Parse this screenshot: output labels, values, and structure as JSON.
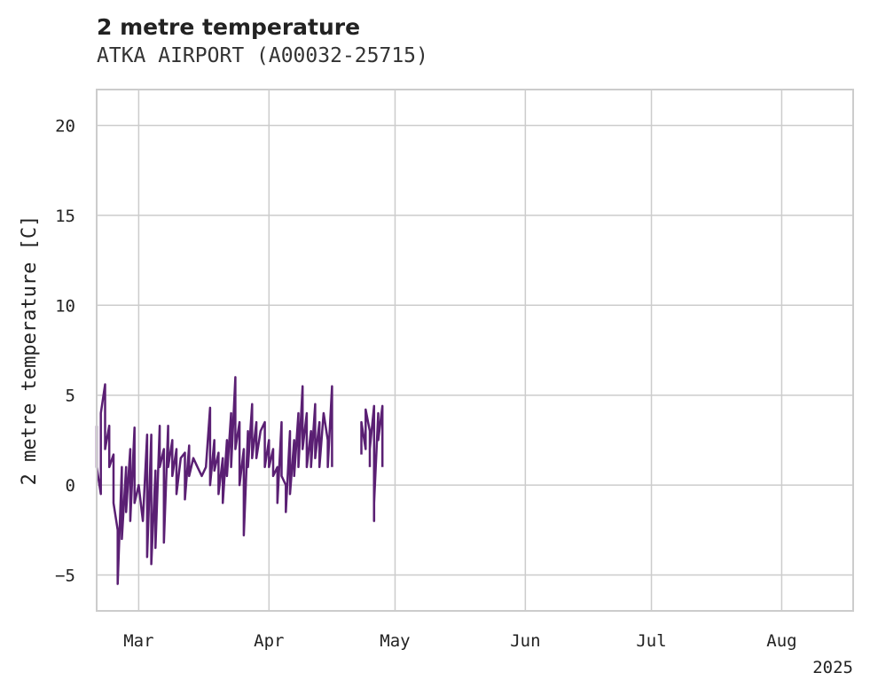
{
  "chart_data": {
    "type": "line",
    "title": "2 metre temperature",
    "subtitle": "ATKA AIRPORT (A00032-25715)",
    "xlabel": "",
    "ylabel": "2 metre temperature [C]",
    "ylim": [
      -7,
      22
    ],
    "xlim": [
      "2025-02-19",
      "2025-08-18"
    ],
    "x_ticks": [
      {
        "date": "2025-03-01",
        "label": "Mar"
      },
      {
        "date": "2025-04-01",
        "label": "Apr"
      },
      {
        "date": "2025-05-01",
        "label": "May"
      },
      {
        "date": "2025-06-01",
        "label": "Jun"
      },
      {
        "date": "2025-07-01",
        "label": "Jul"
      },
      {
        "date": "2025-08-01",
        "label": "Aug"
      }
    ],
    "year_label": "2025",
    "y_ticks": [
      -5,
      0,
      5,
      10,
      15,
      20
    ],
    "y_tick_labels": [
      "−5",
      "0",
      "5",
      "10",
      "15",
      "20"
    ],
    "grid": true,
    "line_color": "#5a1f73",
    "series": [
      {
        "name": "",
        "segments": [
          [
            [
              "2025-02-19",
              3.3
            ],
            [
              "2025-02-19",
              1.0
            ],
            [
              "2025-02-20",
              -0.5
            ],
            [
              "2025-02-20",
              4.0
            ],
            [
              "2025-02-21",
              5.6
            ],
            [
              "2025-02-21",
              2.0
            ],
            [
              "2025-02-22",
              3.3
            ],
            [
              "2025-02-22",
              1.0
            ],
            [
              "2025-02-23",
              1.7
            ],
            [
              "2025-02-23",
              -1.0
            ],
            [
              "2025-02-24",
              -2.5
            ],
            [
              "2025-02-24",
              -5.5
            ],
            [
              "2025-02-25",
              1.0
            ],
            [
              "2025-02-25",
              -3.0
            ],
            [
              "2025-02-26",
              1.0
            ],
            [
              "2025-02-26",
              -1.5
            ],
            [
              "2025-02-27",
              2.0
            ],
            [
              "2025-02-27",
              -2.0
            ],
            [
              "2025-02-28",
              3.2
            ],
            [
              "2025-02-28",
              -1.0
            ],
            [
              "2025-03-01",
              0.0
            ],
            [
              "2025-03-02",
              -2.0
            ],
            [
              "2025-03-03",
              2.8
            ],
            [
              "2025-03-03",
              -4.0
            ],
            [
              "2025-03-04",
              2.8
            ],
            [
              "2025-03-04",
              -4.4
            ],
            [
              "2025-03-05",
              0.8
            ],
            [
              "2025-03-05",
              -3.5
            ],
            [
              "2025-03-06",
              3.3
            ],
            [
              "2025-03-06",
              1.0
            ],
            [
              "2025-03-07",
              2.0
            ],
            [
              "2025-03-07",
              -3.2
            ],
            [
              "2025-03-08",
              3.3
            ],
            [
              "2025-03-08",
              1.0
            ],
            [
              "2025-03-09",
              2.5
            ],
            [
              "2025-03-09",
              0.5
            ],
            [
              "2025-03-10",
              2.0
            ],
            [
              "2025-03-10",
              -0.5
            ],
            [
              "2025-03-11",
              1.5
            ],
            [
              "2025-03-12",
              1.8
            ],
            [
              "2025-03-12",
              -0.8
            ],
            [
              "2025-03-13",
              2.2
            ],
            [
              "2025-03-13",
              0.5
            ],
            [
              "2025-03-14",
              1.5
            ],
            [
              "2025-03-15",
              1.0
            ],
            [
              "2025-03-16",
              0.5
            ],
            [
              "2025-03-17",
              1.0
            ],
            [
              "2025-03-18",
              4.3
            ],
            [
              "2025-03-18",
              0.0
            ],
            [
              "2025-03-19",
              2.5
            ],
            [
              "2025-03-19",
              0.8
            ],
            [
              "2025-03-20",
              1.8
            ],
            [
              "2025-03-20",
              -0.5
            ],
            [
              "2025-03-21",
              1.5
            ],
            [
              "2025-03-21",
              -1.0
            ],
            [
              "2025-03-22",
              2.5
            ],
            [
              "2025-03-22",
              0.5
            ],
            [
              "2025-03-23",
              4.0
            ],
            [
              "2025-03-23",
              1.0
            ],
            [
              "2025-03-24",
              6.0
            ],
            [
              "2025-03-24",
              2.0
            ],
            [
              "2025-03-25",
              3.5
            ],
            [
              "2025-03-25",
              0.0
            ],
            [
              "2025-03-26",
              2.0
            ],
            [
              "2025-03-26",
              -2.8
            ],
            [
              "2025-03-27",
              3.0
            ],
            [
              "2025-03-27",
              1.0
            ],
            [
              "2025-03-28",
              4.5
            ],
            [
              "2025-03-28",
              1.5
            ],
            [
              "2025-03-29",
              3.5
            ],
            [
              "2025-03-29",
              1.5
            ],
            [
              "2025-03-30",
              3.0
            ],
            [
              "2025-03-31",
              3.5
            ],
            [
              "2025-03-31",
              1.0
            ],
            [
              "2025-04-01",
              2.5
            ],
            [
              "2025-04-01",
              1.0
            ],
            [
              "2025-04-02",
              2.0
            ],
            [
              "2025-04-02",
              0.5
            ],
            [
              "2025-04-03",
              1.0
            ],
            [
              "2025-04-03",
              -1.0
            ],
            [
              "2025-04-04",
              3.5
            ],
            [
              "2025-04-04",
              0.5
            ],
            [
              "2025-04-05",
              0.0
            ],
            [
              "2025-04-05",
              -1.5
            ],
            [
              "2025-04-06",
              3.0
            ],
            [
              "2025-04-06",
              -0.5
            ],
            [
              "2025-04-07",
              2.5
            ],
            [
              "2025-04-07",
              0.5
            ],
            [
              "2025-04-08",
              4.0
            ],
            [
              "2025-04-08",
              1.0
            ],
            [
              "2025-04-09",
              5.5
            ],
            [
              "2025-04-09",
              2.0
            ],
            [
              "2025-04-10",
              4.0
            ],
            [
              "2025-04-10",
              1.0
            ],
            [
              "2025-04-11",
              3.0
            ],
            [
              "2025-04-11",
              1.0
            ],
            [
              "2025-04-12",
              4.5
            ],
            [
              "2025-04-12",
              1.5
            ],
            [
              "2025-04-13",
              3.5
            ],
            [
              "2025-04-13",
              1.0
            ],
            [
              "2025-04-14",
              4.0
            ],
            [
              "2025-04-15",
              2.5
            ],
            [
              "2025-04-15",
              1.0
            ],
            [
              "2025-04-16",
              5.5
            ],
            [
              "2025-04-16",
              1.0
            ]
          ],
          [
            [
              "2025-04-23",
              1.7
            ],
            [
              "2025-04-23",
              3.5
            ],
            [
              "2025-04-24",
              2.0
            ],
            [
              "2025-04-24",
              4.2
            ],
            [
              "2025-04-25",
              3.0
            ],
            [
              "2025-04-25",
              2.0
            ],
            [
              "2025-04-26",
              4.4
            ],
            [
              "2025-04-26",
              -2.0
            ],
            [
              "2025-04-26",
              -1.0
            ],
            [
              "2025-04-27",
              4.0
            ],
            [
              "2025-04-27",
              2.5
            ],
            [
              "2025-04-28",
              4.4
            ],
            [
              "2025-04-28",
              1.0
            ]
          ],
          [
            [
              "2025-04-26",
              1.0
            ],
            [
              "2025-04-26",
              -2.0
            ]
          ],
          [
            [
              "2025-04-25",
              1.0
            ],
            [
              "2025-04-25",
              2.0
            ]
          ]
        ]
      }
    ]
  }
}
